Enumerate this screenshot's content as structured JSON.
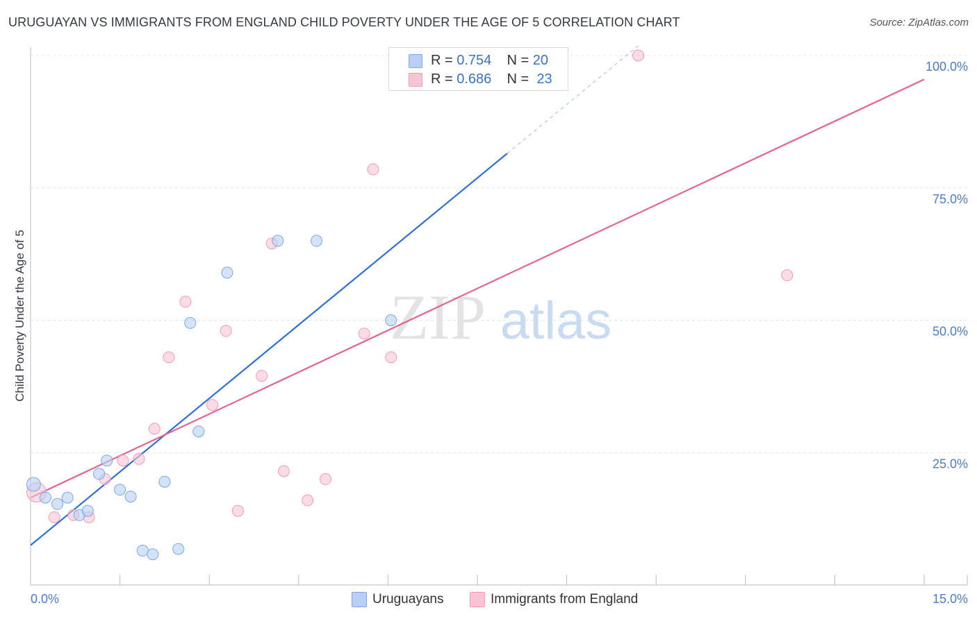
{
  "title": "URUGUAYAN VS IMMIGRANTS FROM ENGLAND CHILD POVERTY UNDER THE AGE OF 5 CORRELATION CHART",
  "source": "Source: ZipAtlas.com",
  "watermark": {
    "zip": "ZIP",
    "atlas": "atlas"
  },
  "legend": {
    "r_label": "R =",
    "n_label": "N =",
    "rows": [
      {
        "r": "0.754",
        "n": "20"
      },
      {
        "r": "0.686",
        "n": "23"
      }
    ]
  },
  "chart_data": {
    "type": "scatter",
    "xlabel": "",
    "ylabel": "Child Poverty Under the Age of 5",
    "xlim": [
      0,
      15
    ],
    "ylim": [
      0,
      100
    ],
    "x_tick_labels": [
      "0.0%",
      "15.0%"
    ],
    "y_ticks": [
      25,
      50,
      75,
      100
    ],
    "y_tick_labels": [
      "25.0%",
      "50.0%",
      "75.0%",
      "100.0%"
    ],
    "grid": true,
    "legend_position": "top-center",
    "series": [
      {
        "name": "Uruguayans",
        "color": "#7aa7e8",
        "fill": "#b9d0f3",
        "line_color": "#2e6fd6",
        "r": 0.754,
        "n": 20,
        "points": [
          [
            0.05,
            19.0
          ],
          [
            0.25,
            16.5
          ],
          [
            0.45,
            15.3
          ],
          [
            0.62,
            16.5
          ],
          [
            0.82,
            13.2
          ],
          [
            0.96,
            14.0
          ],
          [
            1.15,
            21.0
          ],
          [
            1.28,
            23.5
          ],
          [
            1.5,
            18.0
          ],
          [
            1.68,
            16.7
          ],
          [
            1.88,
            6.5
          ],
          [
            2.05,
            5.8
          ],
          [
            2.25,
            19.5
          ],
          [
            2.48,
            6.8
          ],
          [
            2.68,
            49.5
          ],
          [
            2.82,
            29.0
          ],
          [
            3.3,
            59.0
          ],
          [
            4.15,
            65.0
          ],
          [
            4.8,
            65.0
          ],
          [
            6.05,
            50.0
          ]
        ],
        "trend": {
          "x0": 0.0,
          "y0": 7.5,
          "x1": 8.0,
          "y1": 81.5,
          "dashed_to_x": 10.2
        }
      },
      {
        "name": "Immigrants from England",
        "color": "#f29ab8",
        "fill": "#f7c5d6",
        "line_color": "#e0648f",
        "r": 0.686,
        "n": 23,
        "points": [
          [
            0.1,
            17.5
          ],
          [
            0.4,
            12.8
          ],
          [
            0.72,
            13.2
          ],
          [
            0.98,
            12.8
          ],
          [
            1.25,
            20.0
          ],
          [
            1.55,
            23.5
          ],
          [
            1.82,
            23.8
          ],
          [
            2.08,
            29.5
          ],
          [
            2.32,
            43.0
          ],
          [
            2.6,
            53.5
          ],
          [
            3.05,
            34.0
          ],
          [
            3.28,
            48.0
          ],
          [
            3.48,
            14.0
          ],
          [
            3.88,
            39.5
          ],
          [
            4.05,
            64.5
          ],
          [
            4.25,
            21.5
          ],
          [
            4.65,
            16.0
          ],
          [
            4.95,
            20.0
          ],
          [
            5.6,
            47.5
          ],
          [
            5.75,
            78.5
          ],
          [
            6.05,
            43.0
          ],
          [
            10.2,
            100.0
          ],
          [
            12.7,
            58.5
          ]
        ],
        "trend": {
          "x0": 0.0,
          "y0": 16.5,
          "x1": 15.0,
          "y1": 95.5
        }
      }
    ]
  }
}
